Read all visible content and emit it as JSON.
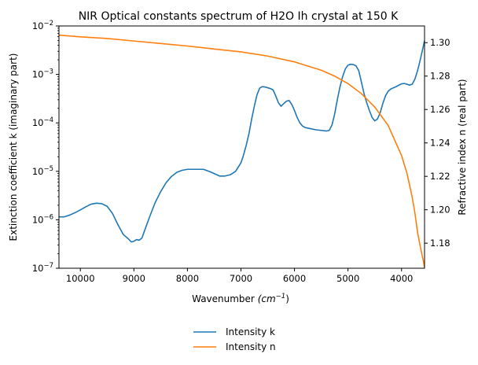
{
  "chart_data": {
    "type": "line",
    "title": "NIR Optical constants spectrum of H2O Ih crystal at 150 K",
    "xlabel": "Wavenumber",
    "xlabel_unit": "(cm",
    "xlabel_exp": "−1",
    "xlabel_close": ")",
    "ylabel_left": "Extinction coefficient k (imaginary part)",
    "ylabel_right": "Refractive index n (real part)",
    "x_inverted": true,
    "xlim": [
      10400,
      3570
    ],
    "y_left_scale": "log",
    "y_left_lim": [
      1e-07,
      0.01
    ],
    "y_right_lim": [
      1.165,
      1.31
    ],
    "x_ticks": [
      10000,
      9000,
      8000,
      7000,
      6000,
      5000,
      4000
    ],
    "x_tick_labels": [
      "10000",
      "9000",
      "8000",
      "7000",
      "6000",
      "5000",
      "4000"
    ],
    "y_left_ticks": [
      1e-07,
      1e-06,
      1e-05,
      0.0001,
      0.001,
      0.01
    ],
    "y_left_tick_labels": [
      {
        "base": "10",
        "exp": "−7"
      },
      {
        "base": "10",
        "exp": "−6"
      },
      {
        "base": "10",
        "exp": "−5"
      },
      {
        "base": "10",
        "exp": "−4"
      },
      {
        "base": "10",
        "exp": "−3"
      },
      {
        "base": "10",
        "exp": "−2"
      }
    ],
    "y_right_ticks": [
      1.18,
      1.2,
      1.22,
      1.24,
      1.26,
      1.28,
      1.3
    ],
    "y_right_tick_labels": [
      "1.18",
      "1.20",
      "1.22",
      "1.24",
      "1.26",
      "1.28",
      "1.30"
    ],
    "grid": false,
    "legend_position": "below",
    "series": [
      {
        "name": "Intensity k",
        "axis": "left",
        "color": "#1f77b4",
        "x": [
          10400,
          10300,
          10200,
          10100,
          10000,
          9900,
          9800,
          9700,
          9600,
          9500,
          9400,
          9300,
          9200,
          9100,
          9050,
          9000,
          8950,
          8900,
          8850,
          8800,
          8700,
          8600,
          8500,
          8400,
          8300,
          8200,
          8100,
          8000,
          7900,
          7800,
          7700,
          7600,
          7500,
          7400,
          7300,
          7200,
          7100,
          7000,
          6950,
          6900,
          6850,
          6800,
          6750,
          6700,
          6650,
          6600,
          6550,
          6500,
          6450,
          6400,
          6350,
          6300,
          6250,
          6200,
          6150,
          6100,
          6050,
          6000,
          5950,
          5900,
          5850,
          5800,
          5700,
          5600,
          5500,
          5400,
          5350,
          5300,
          5250,
          5200,
          5150,
          5100,
          5050,
          5000,
          4950,
          4900,
          4850,
          4800,
          4750,
          4700,
          4650,
          4600,
          4550,
          4500,
          4450,
          4400,
          4350,
          4300,
          4250,
          4200,
          4150,
          4100,
          4050,
          4000,
          3950,
          3900,
          3850,
          3800,
          3750,
          3700,
          3650,
          3600,
          3570
        ],
        "y": [
          1.15e-06,
          1.15e-06,
          1.25e-06,
          1.4e-06,
          1.6e-06,
          1.85e-06,
          2.1e-06,
          2.2e-06,
          2.15e-06,
          1.9e-06,
          1.35e-06,
          8e-07,
          5e-07,
          4e-07,
          3.5e-07,
          3.6e-07,
          3.9e-07,
          3.8e-07,
          4.2e-07,
          6e-07,
          1.2e-06,
          2.3e-06,
          3.8e-06,
          5.8e-06,
          7.8e-06,
          9.5e-06,
          1.05e-05,
          1.1e-05,
          1.1e-05,
          1.1e-05,
          1.1e-05,
          1e-05,
          9e-06,
          8e-06,
          8e-06,
          8.5e-06,
          1e-05,
          1.5e-05,
          2.2e-05,
          3.5e-05,
          6e-05,
          0.00012,
          0.00022,
          0.00038,
          0.00052,
          0.00056,
          0.00055,
          0.00053,
          0.00051,
          0.00048,
          0.00036,
          0.00026,
          0.00022,
          0.00025,
          0.00028,
          0.00029,
          0.00024,
          0.00018,
          0.00013,
          0.0001,
          8.6e-05,
          8e-05,
          7.6e-05,
          7.2e-05,
          7e-05,
          6.8e-05,
          7e-05,
          9e-05,
          0.00015,
          0.0003,
          0.00055,
          0.0009,
          0.0013,
          0.00155,
          0.00162,
          0.0016,
          0.0015,
          0.0012,
          0.0007,
          0.0004,
          0.00026,
          0.00018,
          0.00013,
          0.00011,
          0.00012,
          0.00016,
          0.00025,
          0.00036,
          0.00045,
          0.0005,
          0.00053,
          0.00056,
          0.0006,
          0.00064,
          0.00065,
          0.00063,
          0.0006,
          0.00063,
          0.0008,
          0.0012,
          0.002,
          0.0035,
          0.005
        ]
      },
      {
        "name": "Intensity n",
        "axis": "right",
        "color": "#ff7f0e",
        "x": [
          10400,
          10000,
          9500,
          9000,
          8500,
          8000,
          7500,
          7000,
          6500,
          6000,
          5750,
          5500,
          5250,
          5000,
          4750,
          4500,
          4250,
          4000,
          3900,
          3800,
          3750,
          3700,
          3650,
          3600,
          3570
        ],
        "y": [
          1.3045,
          1.3035,
          1.3025,
          1.301,
          1.2995,
          1.298,
          1.2962,
          1.2945,
          1.292,
          1.2885,
          1.286,
          1.2835,
          1.28,
          1.2755,
          1.2695,
          1.2615,
          1.2505,
          1.2325,
          1.222,
          1.2075,
          1.198,
          1.1865,
          1.178,
          1.1705,
          1.1655
        ]
      }
    ]
  }
}
